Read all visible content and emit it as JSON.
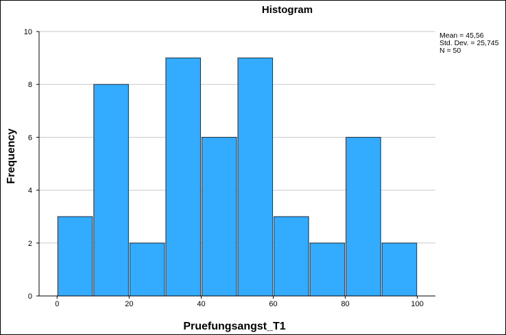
{
  "chart_data": {
    "type": "bar",
    "title": "Histogram",
    "xlabel": "Pruefungsangst_T1",
    "ylabel": "Frequency",
    "bins": [
      {
        "start": 0,
        "end": 10,
        "count": 3
      },
      {
        "start": 10,
        "end": 20,
        "count": 8
      },
      {
        "start": 20,
        "end": 30,
        "count": 2
      },
      {
        "start": 30,
        "end": 40,
        "count": 9
      },
      {
        "start": 40,
        "end": 50,
        "count": 6
      },
      {
        "start": 50,
        "end": 60,
        "count": 9
      },
      {
        "start": 60,
        "end": 70,
        "count": 3
      },
      {
        "start": 70,
        "end": 80,
        "count": 2
      },
      {
        "start": 80,
        "end": 90,
        "count": 6
      },
      {
        "start": 90,
        "end": 100,
        "count": 2
      }
    ],
    "xlim": [
      -5,
      105
    ],
    "ylim": [
      0,
      10
    ],
    "xticks": [
      "0",
      "20",
      "40",
      "60",
      "80",
      "100"
    ],
    "yticks": [
      "0",
      "2",
      "4",
      "6",
      "8",
      "10"
    ],
    "grid": "horizontal",
    "statistics": [
      "Mean = 45,56",
      "Std. Dev. = 25,745",
      "N = 50"
    ],
    "colors": {
      "bar_fill": "#33acff",
      "bar_stroke": "#1e2a3a",
      "grid": "#c8c8c8"
    }
  }
}
